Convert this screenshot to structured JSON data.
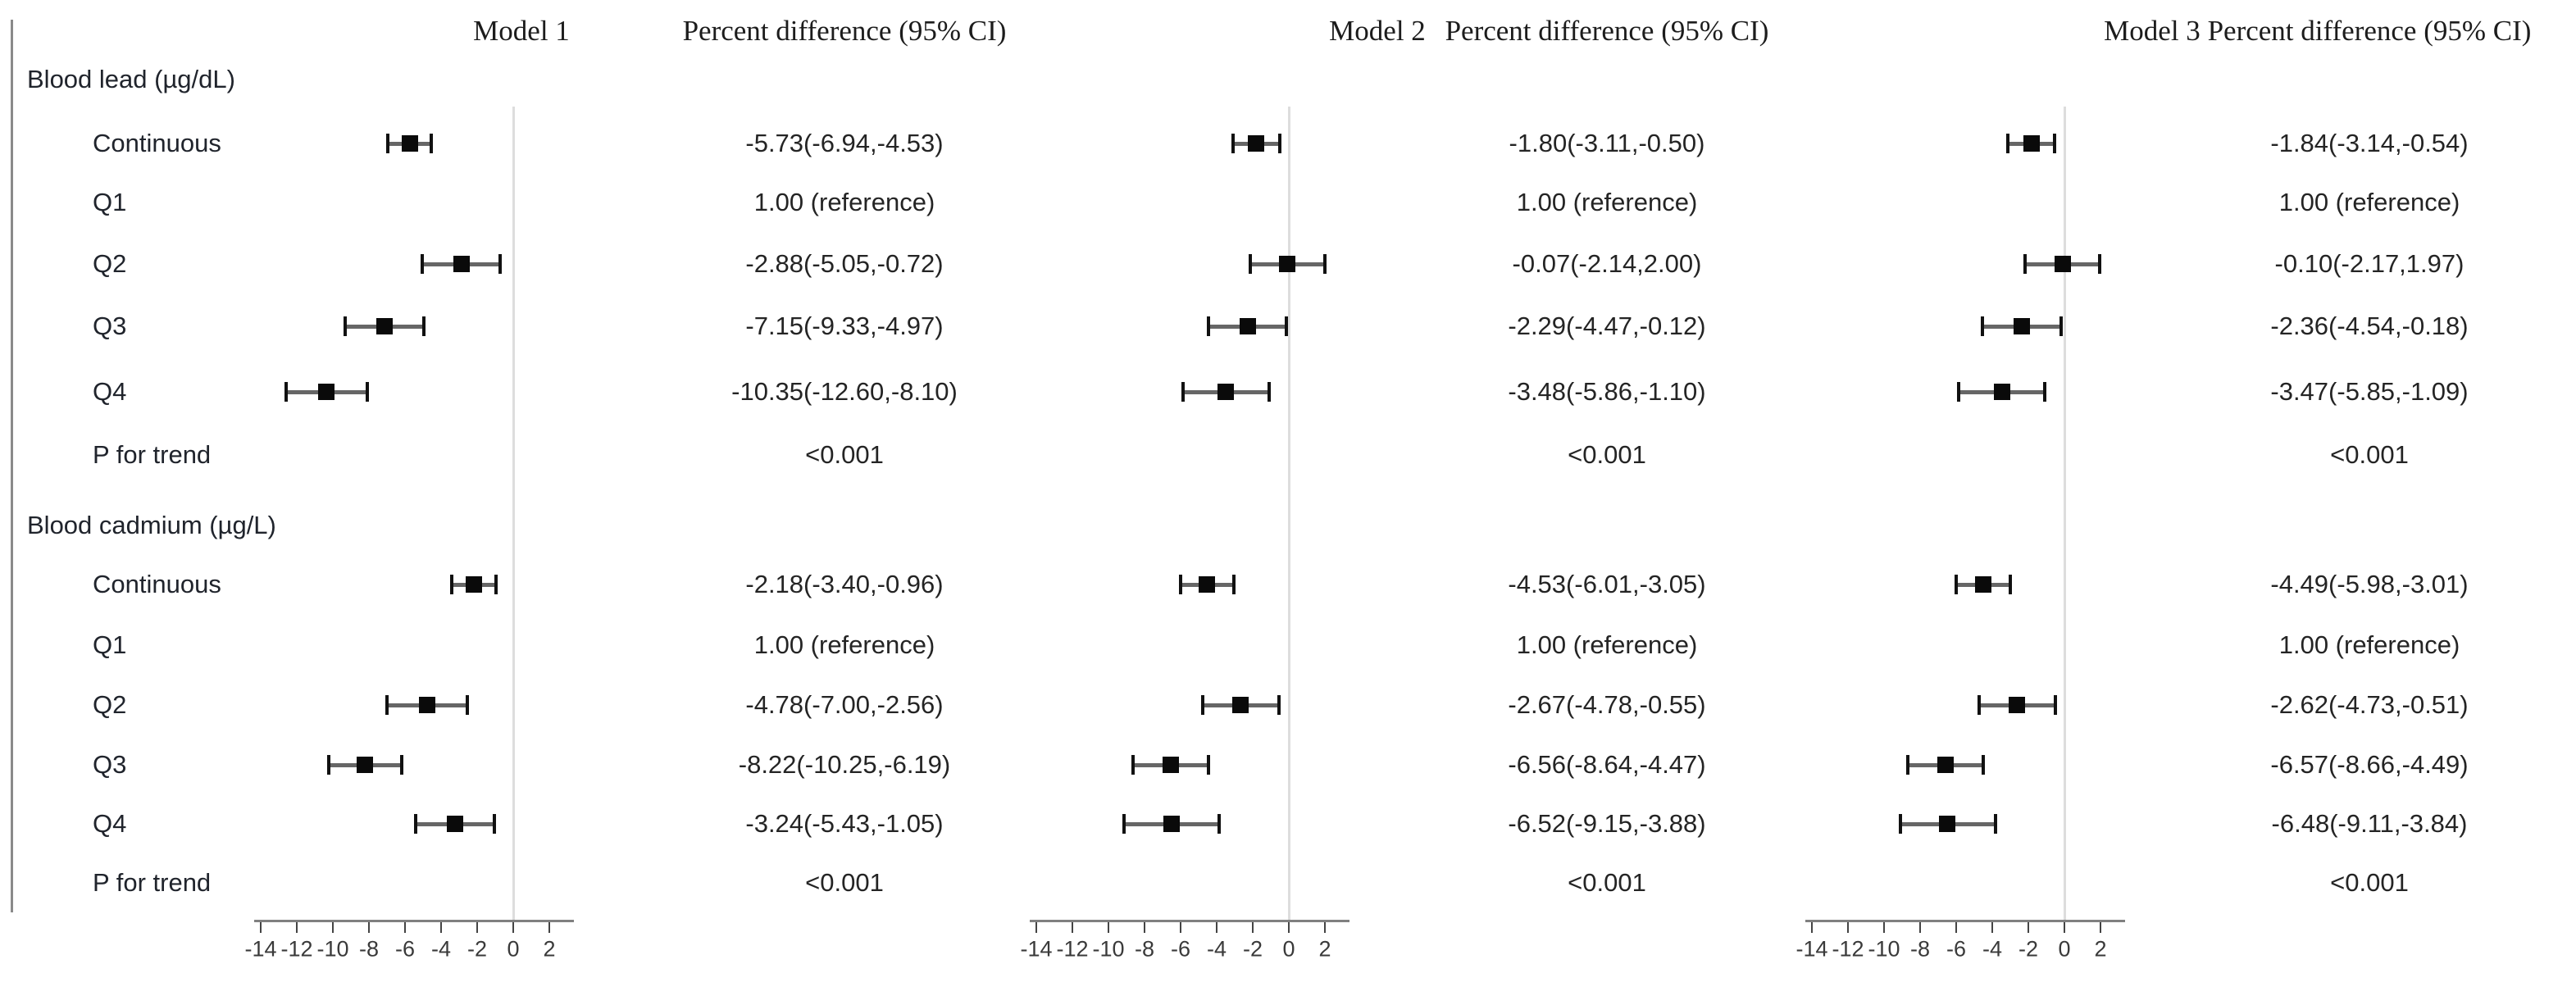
{
  "chart_data": {
    "type": "forest",
    "title": "",
    "column_headers": {
      "models": [
        "Model 1",
        "Model 2",
        "Model 3"
      ],
      "value_header": "Percent difference (95% CI)"
    },
    "xaxis": {
      "min": -14,
      "max": 2,
      "ticks": [
        -14,
        -12,
        -10,
        -8,
        -6,
        -4,
        -2,
        0,
        2
      ]
    },
    "sections": [
      {
        "label": "Blood lead (µg/dL)",
        "rows": [
          {
            "label": "Continuous",
            "cells": [
              {
                "text": "-5.73(-6.94,-4.53)",
                "est": -5.73,
                "lo": -6.94,
                "hi": -4.53
              },
              {
                "text": "-1.80(-3.11,-0.50)",
                "est": -1.8,
                "lo": -3.11,
                "hi": -0.5
              },
              {
                "text": "-1.84(-3.14,-0.54)",
                "est": -1.84,
                "lo": -3.14,
                "hi": -0.54
              }
            ]
          },
          {
            "label": "Q1",
            "cells": [
              {
                "text": "1.00 (reference)"
              },
              {
                "text": "1.00 (reference)"
              },
              {
                "text": "1.00 (reference)"
              }
            ]
          },
          {
            "label": "Q2",
            "cells": [
              {
                "text": "-2.88(-5.05,-0.72)",
                "est": -2.88,
                "lo": -5.05,
                "hi": -0.72
              },
              {
                "text": "-0.07(-2.14,2.00)",
                "est": -0.07,
                "lo": -2.14,
                "hi": 2.0
              },
              {
                "text": "-0.10(-2.17,1.97)",
                "est": -0.1,
                "lo": -2.17,
                "hi": 1.97
              }
            ]
          },
          {
            "label": "Q3",
            "cells": [
              {
                "text": "-7.15(-9.33,-4.97)",
                "est": -7.15,
                "lo": -9.33,
                "hi": -4.97
              },
              {
                "text": "-2.29(-4.47,-0.12)",
                "est": -2.29,
                "lo": -4.47,
                "hi": -0.12
              },
              {
                "text": "-2.36(-4.54,-0.18)",
                "est": -2.36,
                "lo": -4.54,
                "hi": -0.18
              }
            ]
          },
          {
            "label": "Q4",
            "cells": [
              {
                "text": "-10.35(-12.60,-8.10)",
                "est": -10.35,
                "lo": -12.6,
                "hi": -8.1
              },
              {
                "text": "-3.48(-5.86,-1.10)",
                "est": -3.48,
                "lo": -5.86,
                "hi": -1.1
              },
              {
                "text": "-3.47(-5.85,-1.09)",
                "est": -3.47,
                "lo": -5.85,
                "hi": -1.09
              }
            ]
          },
          {
            "label": "P for trend",
            "cells": [
              {
                "text": "<0.001"
              },
              {
                "text": "<0.001"
              },
              {
                "text": "<0.001"
              }
            ]
          }
        ]
      },
      {
        "label": "Blood cadmium (µg/L)",
        "rows": [
          {
            "label": "Continuous",
            "cells": [
              {
                "text": "-2.18(-3.40,-0.96)",
                "est": -2.18,
                "lo": -3.4,
                "hi": -0.96
              },
              {
                "text": "-4.53(-6.01,-3.05)",
                "est": -4.53,
                "lo": -6.01,
                "hi": -3.05
              },
              {
                "text": "-4.49(-5.98,-3.01)",
                "est": -4.49,
                "lo": -5.98,
                "hi": -3.01
              }
            ]
          },
          {
            "label": "Q1",
            "cells": [
              {
                "text": "1.00 (reference)"
              },
              {
                "text": "1.00 (reference)"
              },
              {
                "text": "1.00 (reference)"
              }
            ]
          },
          {
            "label": "Q2",
            "cells": [
              {
                "text": "-4.78(-7.00,-2.56)",
                "est": -4.78,
                "lo": -7.0,
                "hi": -2.56
              },
              {
                "text": "-2.67(-4.78,-0.55)",
                "est": -2.67,
                "lo": -4.78,
                "hi": -0.55
              },
              {
                "text": "-2.62(-4.73,-0.51)",
                "est": -2.62,
                "lo": -4.73,
                "hi": -0.51
              }
            ]
          },
          {
            "label": "Q3",
            "cells": [
              {
                "text": "-8.22(-10.25,-6.19)",
                "est": -8.22,
                "lo": -10.25,
                "hi": -6.19
              },
              {
                "text": "-6.56(-8.64,-4.47)",
                "est": -6.56,
                "lo": -8.64,
                "hi": -4.47
              },
              {
                "text": "-6.57(-8.66,-4.49)",
                "est": -6.57,
                "lo": -8.66,
                "hi": -4.49
              }
            ]
          },
          {
            "label": "Q4",
            "cells": [
              {
                "text": "-3.24(-5.43,-1.05)",
                "est": -3.24,
                "lo": -5.43,
                "hi": -1.05
              },
              {
                "text": "-6.52(-9.15,-3.88)",
                "est": -6.52,
                "lo": -9.15,
                "hi": -3.88
              },
              {
                "text": "-6.48(-9.11,-3.84)",
                "est": -6.48,
                "lo": -9.11,
                "hi": -3.84
              }
            ]
          },
          {
            "label": "P for trend",
            "cells": [
              {
                "text": "<0.001"
              },
              {
                "text": "<0.001"
              },
              {
                "text": "<0.001"
              }
            ]
          }
        ]
      }
    ],
    "colors": {
      "marker": "#0a0a0a",
      "ci_line": "#666666",
      "ci_cap": "#111111",
      "reference_line": "#dddddd",
      "axis_line": "#808080",
      "tick": "#444444",
      "left_guide_line": "#8a8a8a",
      "text": "#242424"
    }
  }
}
